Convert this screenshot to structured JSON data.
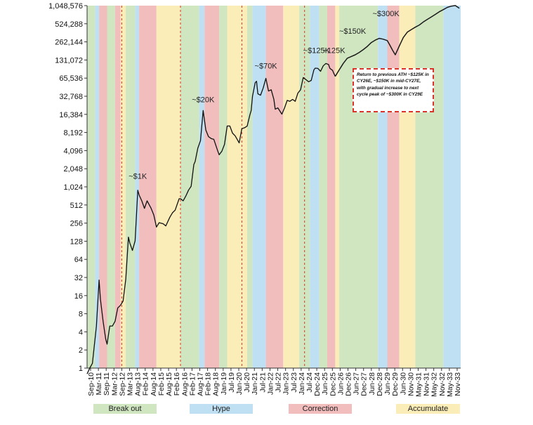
{
  "chart_data": {
    "type": "line",
    "y_scale": "log2",
    "y_ticks": [
      1,
      2,
      4,
      8,
      16,
      32,
      64,
      128,
      256,
      512,
      1024,
      2048,
      4096,
      8192,
      16384,
      32768,
      65536,
      131072,
      262144,
      524288,
      1048576
    ],
    "y_tick_labels": [
      "1",
      "2",
      "4",
      "8",
      "16",
      "32",
      "64",
      "128",
      "256",
      "512",
      "1,024",
      "2,048",
      "4,096",
      "8,192",
      "16,384",
      "32,768",
      "65,536",
      "131,072",
      "262,144",
      "524,288",
      "1,048,576"
    ],
    "ylim": [
      1,
      1048576
    ],
    "xlim": [
      "2010-09",
      "2034-01"
    ],
    "x_tick_labels": [
      "Sep-10",
      "Mar-11",
      "Sep-11",
      "Mar-12",
      "Sep-12",
      "Mar-13",
      "Aug-13",
      "Feb-14",
      "Aug-14",
      "Feb-15",
      "Aug-15",
      "Feb-16",
      "Aug-16",
      "Feb-17",
      "Aug-17",
      "Feb-18",
      "Aug-18",
      "Jan-19",
      "Jul-19",
      "Jan-20",
      "Jul-20",
      "Jan-21",
      "Jul-21",
      "Jan-22",
      "Jul-22",
      "Jan-23",
      "Jul-23",
      "Jan-24",
      "Jul-24",
      "Dec-24",
      "Jun-25",
      "Dec-25",
      "Jun-26",
      "Dec-26",
      "Jun-27",
      "Dec-27",
      "Jun-28",
      "Dec-28",
      "Jun-29",
      "Dec-29",
      "Jun-30",
      "Nov-30",
      "May-31",
      "Nov-31",
      "May-32",
      "Nov-32",
      "May-33",
      "Nov-33"
    ],
    "phases": [
      {
        "phase": "Break out",
        "start": "2010-09",
        "end": "2011-03"
      },
      {
        "phase": "Hype",
        "start": "2011-03",
        "end": "2011-06"
      },
      {
        "phase": "Correction",
        "start": "2011-06",
        "end": "2011-12"
      },
      {
        "phase": "Break out",
        "start": "2011-12",
        "end": "2012-06"
      },
      {
        "phase": "Correction",
        "start": "2012-06",
        "end": "2012-10"
      },
      {
        "phase": "Accumulate",
        "start": "2012-10",
        "end": "2013-02"
      },
      {
        "phase": "Break out",
        "start": "2013-02",
        "end": "2013-09"
      },
      {
        "phase": "Hype",
        "start": "2013-09",
        "end": "2013-12"
      },
      {
        "phase": "Correction",
        "start": "2013-12",
        "end": "2015-01"
      },
      {
        "phase": "Accumulate",
        "start": "2015-01",
        "end": "2016-07"
      },
      {
        "phase": "Break out",
        "start": "2016-07",
        "end": "2017-09"
      },
      {
        "phase": "Hype",
        "start": "2017-09",
        "end": "2018-01"
      },
      {
        "phase": "Correction",
        "start": "2018-01",
        "end": "2018-12"
      },
      {
        "phase": "Break out",
        "start": "2018-12",
        "end": "2019-06"
      },
      {
        "phase": "Accumulate",
        "start": "2019-06",
        "end": "2020-09"
      },
      {
        "phase": "Break out",
        "start": "2020-09",
        "end": "2021-01"
      },
      {
        "phase": "Hype",
        "start": "2021-01",
        "end": "2021-11"
      },
      {
        "phase": "Correction",
        "start": "2021-11",
        "end": "2022-12"
      },
      {
        "phase": "Accumulate",
        "start": "2022-12",
        "end": "2023-12"
      },
      {
        "phase": "Break out",
        "start": "2023-12",
        "end": "2024-08"
      },
      {
        "phase": "Hype",
        "start": "2024-08",
        "end": "2025-03"
      },
      {
        "phase": "Break out",
        "start": "2025-03",
        "end": "2025-09"
      },
      {
        "phase": "Correction",
        "start": "2025-09",
        "end": "2026-03"
      },
      {
        "phase": "Accumulate",
        "start": "2026-03",
        "end": "2026-06"
      },
      {
        "phase": "Break out",
        "start": "2026-06",
        "end": "2028-11"
      },
      {
        "phase": "Hype",
        "start": "2028-11",
        "end": "2029-06"
      },
      {
        "phase": "Correction",
        "start": "2029-06",
        "end": "2030-03"
      },
      {
        "phase": "Accumulate",
        "start": "2030-03",
        "end": "2031-03"
      },
      {
        "phase": "Break out",
        "start": "2031-03",
        "end": "2032-12"
      },
      {
        "phase": "Hype",
        "start": "2032-12",
        "end": "2034-01"
      }
    ],
    "halving_dates": [
      "2012-11",
      "2016-07",
      "2020-05",
      "2024-04"
    ],
    "series": [
      {
        "kind": "historical",
        "color": "#111111",
        "x": [
          "2010-09",
          "2010-11",
          "2011-01",
          "2011-04",
          "2011-06",
          "2011-07",
          "2011-09",
          "2011-11",
          "2011-12",
          "2012-02",
          "2012-04",
          "2012-06",
          "2012-08",
          "2012-10",
          "2012-12",
          "2013-02",
          "2013-04",
          "2013-05",
          "2013-07",
          "2013-09",
          "2013-11",
          "2013-12",
          "2014-02",
          "2014-04",
          "2014-06",
          "2014-09",
          "2014-11",
          "2015-01",
          "2015-03",
          "2015-06",
          "2015-08",
          "2015-11",
          "2016-01",
          "2016-03",
          "2016-06",
          "2016-07",
          "2016-09",
          "2016-11",
          "2017-01",
          "2017-03",
          "2017-05",
          "2017-06",
          "2017-08",
          "2017-10",
          "2017-12",
          "2018-02",
          "2018-04",
          "2018-06",
          "2018-08",
          "2018-11",
          "2018-12",
          "2019-02",
          "2019-04",
          "2019-06",
          "2019-08",
          "2019-10",
          "2019-12",
          "2020-03",
          "2020-05",
          "2020-07",
          "2020-09",
          "2020-11",
          "2020-12",
          "2021-01",
          "2021-03",
          "2021-04",
          "2021-05",
          "2021-07",
          "2021-09",
          "2021-11",
          "2022-01",
          "2022-03",
          "2022-05",
          "2022-06",
          "2022-08",
          "2022-11",
          "2023-01",
          "2023-03",
          "2023-05",
          "2023-07",
          "2023-09",
          "2023-11",
          "2024-01",
          "2024-03",
          "2024-05",
          "2024-07",
          "2024-09",
          "2024-11",
          "2024-12",
          "2025-02",
          "2025-04",
          "2025-06",
          "2025-08",
          "2025-10",
          "2025-11",
          "2026-01",
          "2026-02",
          "2026-03"
        ],
        "y": [
          0.8,
          1,
          1.2,
          5,
          29,
          14,
          6,
          3,
          2.5,
          5,
          5,
          6,
          10,
          11,
          13,
          30,
          150,
          120,
          90,
          130,
          900,
          750,
          600,
          450,
          600,
          450,
          350,
          220,
          260,
          250,
          230,
          320,
          380,
          420,
          650,
          650,
          600,
          720,
          900,
          1050,
          2400,
          2700,
          4500,
          6000,
          19000,
          9000,
          7000,
          6500,
          6300,
          4000,
          3500,
          4000,
          5200,
          10500,
          10500,
          8000,
          7200,
          5500,
          9500,
          9800,
          10500,
          16000,
          19000,
          33000,
          55000,
          58000,
          36000,
          34000,
          45000,
          65000,
          40000,
          42000,
          29000,
          20000,
          21000,
          16500,
          21000,
          28000,
          27000,
          29000,
          27000,
          37000,
          42000,
          67000,
          62000,
          57000,
          60000,
          90000,
          96000,
          95000,
          85000,
          105000,
          115000,
          110000,
          95000,
          88000,
          78000,
          70000
        ]
      },
      {
        "kind": "projection",
        "color": "#1a1a1a",
        "x": [
          "2026-03",
          "2026-06",
          "2026-09",
          "2026-12",
          "2027-03",
          "2027-06",
          "2027-09",
          "2027-12",
          "2028-03",
          "2028-06",
          "2028-09",
          "2028-12",
          "2029-03",
          "2029-06",
          "2029-08",
          "2029-10",
          "2029-12",
          "2030-02",
          "2030-04",
          "2030-06",
          "2030-09",
          "2030-12",
          "2031-03",
          "2031-06",
          "2031-09",
          "2031-12",
          "2032-03",
          "2032-06",
          "2032-09",
          "2032-12",
          "2033-03",
          "2033-06",
          "2033-09",
          "2033-12"
        ],
        "y": [
          70000,
          90000,
          115000,
          140000,
          150000,
          160000,
          175000,
          195000,
          220000,
          255000,
          280000,
          300000,
          290000,
          275000,
          230000,
          190000,
          160000,
          200000,
          250000,
          310000,
          380000,
          420000,
          460000,
          500000,
          560000,
          620000,
          680000,
          750000,
          830000,
          900000,
          980000,
          1030000,
          1050000,
          950000
        ]
      }
    ],
    "labels": [
      {
        "text": "~$1K",
        "x": "2013-11",
        "y": 1400
      },
      {
        "text": "~$20K",
        "x": "2017-12",
        "y": 26000
      },
      {
        "text": "~$70K",
        "x": "2021-11",
        "y": 95000
      },
      {
        "text": "~$125K",
        "x": "2025-01",
        "y": 170000
      },
      {
        "text": "~125K",
        "x": "2026-02",
        "y": 170000
      },
      {
        "text": "~$150K",
        "x": "2027-04",
        "y": 360000
      },
      {
        "text": "~$300K",
        "x": "2029-05",
        "y": 700000
      }
    ],
    "annotation": "Return to previous ATH ~$125K in CY26E, ~$150K in mid-CY27E, with gradual increase to next cycle peak of ~$300K in CY29E",
    "legend": [
      {
        "label": "Break out",
        "color": "#cfe6c0"
      },
      {
        "label": "Hype",
        "color": "#bfe0f2"
      },
      {
        "label": "Correction",
        "color": "#f2bdbd"
      },
      {
        "label": "Accumulate",
        "color": "#fbedb8"
      }
    ]
  }
}
